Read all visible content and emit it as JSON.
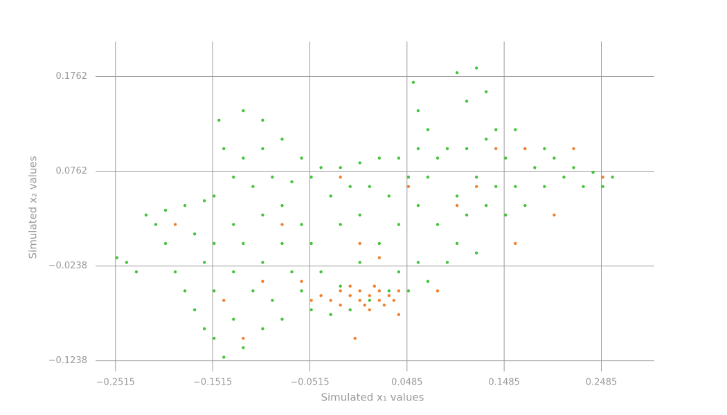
{
  "chart_data": {
    "type": "scatter",
    "xlabel": "Simulated x₁ values",
    "ylabel": "Simulated x₂ values",
    "xlim": [
      -0.272,
      0.303
    ],
    "ylim": [
      -0.135,
      0.213
    ],
    "xticks": [
      {
        "value": -0.2515,
        "label": "−0.2515"
      },
      {
        "value": -0.1515,
        "label": "−0.1515"
      },
      {
        "value": -0.0515,
        "label": "−0.0515"
      },
      0.0485,
      0.1485,
      0.2485
    ],
    "yticks": [
      {
        "value": -0.1238,
        "label": "−0.1238"
      },
      {
        "value": -0.0238,
        "label": "−0.0238"
      },
      0.0762,
      0.1762
    ],
    "grid": true,
    "series": [
      {
        "color": "#44c43a",
        "x": [
          -0.25,
          -0.24,
          -0.23,
          -0.22,
          -0.21,
          -0.2,
          -0.2,
          -0.19,
          -0.18,
          -0.18,
          -0.17,
          -0.17,
          -0.16,
          -0.16,
          -0.16,
          -0.15,
          -0.15,
          -0.15,
          -0.15,
          -0.145,
          -0.14,
          -0.14,
          -0.13,
          -0.13,
          -0.13,
          -0.13,
          -0.12,
          -0.12,
          -0.12,
          -0.12,
          -0.11,
          -0.11,
          -0.1,
          -0.1,
          -0.1,
          -0.1,
          -0.1,
          -0.09,
          -0.09,
          -0.08,
          -0.08,
          -0.08,
          -0.08,
          -0.07,
          -0.07,
          -0.06,
          -0.06,
          -0.06,
          -0.05,
          -0.05,
          -0.05,
          -0.04,
          -0.04,
          -0.03,
          -0.03,
          -0.02,
          -0.02,
          -0.02,
          -0.01,
          -0.01,
          0.0,
          0.0,
          0.0,
          0.01,
          0.01,
          0.02,
          0.02,
          0.03,
          0.03,
          0.04,
          0.04,
          0.04,
          0.05,
          0.05,
          0.055,
          0.06,
          0.06,
          0.06,
          0.06,
          0.07,
          0.07,
          0.07,
          0.08,
          0.08,
          0.09,
          0.09,
          0.1,
          0.1,
          0.1,
          0.11,
          0.11,
          0.11,
          0.12,
          0.12,
          0.12,
          0.13,
          0.13,
          0.13,
          0.14,
          0.14,
          0.15,
          0.15,
          0.16,
          0.16,
          0.17,
          0.17,
          0.18,
          0.19,
          0.19,
          0.2,
          0.21,
          0.22,
          0.23,
          0.24,
          0.25,
          0.26
        ],
        "y": [
          -0.015,
          -0.02,
          -0.03,
          0.03,
          0.02,
          0.035,
          0.0,
          -0.03,
          0.04,
          -0.05,
          0.01,
          -0.07,
          0.045,
          -0.02,
          -0.09,
          0.05,
          0.0,
          -0.05,
          -0.1,
          0.13,
          0.1,
          -0.12,
          0.07,
          0.02,
          -0.03,
          -0.08,
          0.14,
          0.09,
          0.0,
          -0.11,
          0.06,
          -0.05,
          0.13,
          0.1,
          0.03,
          -0.02,
          -0.09,
          0.07,
          -0.06,
          0.11,
          0.04,
          0.0,
          -0.08,
          0.065,
          -0.03,
          0.09,
          0.02,
          -0.05,
          0.07,
          0.0,
          -0.07,
          0.08,
          -0.03,
          0.05,
          -0.075,
          0.08,
          0.02,
          -0.045,
          0.06,
          -0.07,
          0.085,
          0.03,
          -0.02,
          0.06,
          -0.06,
          0.09,
          0.0,
          0.05,
          -0.05,
          0.09,
          0.02,
          -0.03,
          0.07,
          -0.05,
          0.17,
          0.14,
          0.1,
          0.04,
          -0.02,
          0.12,
          0.07,
          -0.04,
          0.09,
          0.02,
          0.1,
          -0.02,
          0.18,
          0.05,
          0.0,
          0.15,
          0.1,
          0.03,
          0.185,
          0.07,
          -0.01,
          0.16,
          0.11,
          0.04,
          0.12,
          0.06,
          0.09,
          0.03,
          0.12,
          0.06,
          0.1,
          0.04,
          0.08,
          0.1,
          0.06,
          0.09,
          0.07,
          0.08,
          0.06,
          0.075,
          0.06,
          0.07
        ]
      },
      {
        "color": "#f08030",
        "x": [
          -0.19,
          -0.14,
          -0.12,
          -0.1,
          -0.08,
          -0.06,
          -0.05,
          -0.04,
          -0.03,
          -0.02,
          -0.02,
          -0.01,
          -0.01,
          0.0,
          0.0,
          0.005,
          0.01,
          0.01,
          0.015,
          0.02,
          0.02,
          0.025,
          0.03,
          0.035,
          0.04,
          0.0,
          0.02,
          -0.005,
          0.04,
          0.05,
          0.08,
          0.1,
          0.12,
          0.14,
          0.16,
          0.17,
          0.2,
          0.22,
          0.25,
          -0.02
        ],
        "y": [
          0.02,
          -0.06,
          -0.1,
          -0.04,
          0.02,
          -0.04,
          -0.06,
          -0.055,
          -0.06,
          -0.065,
          -0.05,
          -0.055,
          -0.045,
          -0.06,
          -0.05,
          -0.065,
          -0.07,
          -0.055,
          -0.045,
          -0.06,
          -0.05,
          -0.065,
          -0.055,
          -0.06,
          -0.05,
          0.0,
          -0.015,
          -0.1,
          -0.075,
          0.06,
          -0.05,
          0.04,
          0.06,
          0.1,
          0.0,
          0.1,
          0.03,
          0.1,
          0.07,
          0.07
        ]
      }
    ]
  }
}
